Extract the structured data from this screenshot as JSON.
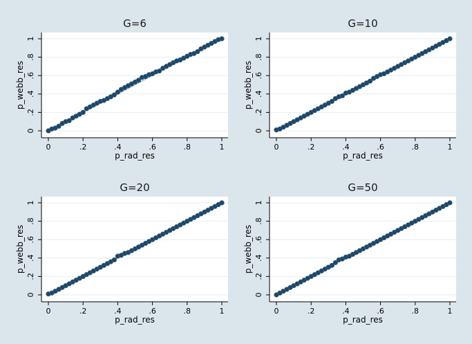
{
  "figure": {
    "background": "#dbe6ec",
    "plot_background": "#ffffff",
    "grid_color": "#e6eef3",
    "marker_color": "#1a476f",
    "marker_edge": "#3a5a6a",
    "fit_line_color": "#7a9aaa"
  },
  "chart_data": [
    {
      "type": "scatter",
      "title": "G=6",
      "xlabel": "p_rad_res",
      "ylabel": "p_webb_res",
      "xlim": [
        0,
        1
      ],
      "ylim": [
        0,
        1
      ],
      "xticks": [
        0,
        0.2,
        0.4,
        0.6,
        0.8,
        1
      ],
      "xtick_labels": [
        "0",
        ".2",
        ".4",
        ".6",
        ".8",
        "1"
      ],
      "yticks": [
        0,
        0.2,
        0.4,
        0.6,
        0.8,
        1
      ],
      "ytick_labels": [
        "0",
        ".2",
        ".4",
        ".6",
        ".8",
        "1"
      ],
      "grid": true,
      "fit_line": true,
      "points": [
        [
          0.0,
          0.0
        ],
        [
          0.02,
          0.02
        ],
        [
          0.04,
          0.03
        ],
        [
          0.06,
          0.05
        ],
        [
          0.08,
          0.08
        ],
        [
          0.1,
          0.1
        ],
        [
          0.12,
          0.11
        ],
        [
          0.14,
          0.14
        ],
        [
          0.16,
          0.16
        ],
        [
          0.18,
          0.18
        ],
        [
          0.2,
          0.2
        ],
        [
          0.22,
          0.24
        ],
        [
          0.24,
          0.26
        ],
        [
          0.26,
          0.28
        ],
        [
          0.28,
          0.3
        ],
        [
          0.3,
          0.32
        ],
        [
          0.32,
          0.33
        ],
        [
          0.34,
          0.35
        ],
        [
          0.36,
          0.37
        ],
        [
          0.38,
          0.39
        ],
        [
          0.4,
          0.42
        ],
        [
          0.42,
          0.45
        ],
        [
          0.44,
          0.47
        ],
        [
          0.46,
          0.49
        ],
        [
          0.48,
          0.51
        ],
        [
          0.5,
          0.53
        ],
        [
          0.52,
          0.55
        ],
        [
          0.54,
          0.58
        ],
        [
          0.56,
          0.59
        ],
        [
          0.58,
          0.61
        ],
        [
          0.6,
          0.62
        ],
        [
          0.62,
          0.64
        ],
        [
          0.64,
          0.65
        ],
        [
          0.66,
          0.68
        ],
        [
          0.68,
          0.7
        ],
        [
          0.7,
          0.72
        ],
        [
          0.72,
          0.74
        ],
        [
          0.74,
          0.76
        ],
        [
          0.76,
          0.77
        ],
        [
          0.78,
          0.79
        ],
        [
          0.8,
          0.81
        ],
        [
          0.82,
          0.83
        ],
        [
          0.84,
          0.84
        ],
        [
          0.86,
          0.86
        ],
        [
          0.88,
          0.89
        ],
        [
          0.9,
          0.91
        ],
        [
          0.92,
          0.93
        ],
        [
          0.94,
          0.95
        ],
        [
          0.96,
          0.97
        ],
        [
          0.98,
          0.99
        ],
        [
          1.0,
          1.0
        ]
      ]
    },
    {
      "type": "scatter",
      "title": "G=10",
      "xlabel": "p_rad_res",
      "ylabel": "p_webb_res",
      "xlim": [
        0,
        1
      ],
      "ylim": [
        0,
        1
      ],
      "xticks": [
        0,
        0.2,
        0.4,
        0.6,
        0.8,
        1
      ],
      "xtick_labels": [
        "0",
        ".2",
        ".4",
        ".6",
        ".8",
        "1"
      ],
      "yticks": [
        0,
        0.2,
        0.4,
        0.6,
        0.8,
        1
      ],
      "ytick_labels": [
        "0",
        ".2",
        ".4",
        ".6",
        ".8",
        "1"
      ],
      "grid": true,
      "fit_line": true,
      "points": [
        [
          0.0,
          0.01
        ],
        [
          0.02,
          0.02
        ],
        [
          0.04,
          0.04
        ],
        [
          0.06,
          0.06
        ],
        [
          0.08,
          0.08
        ],
        [
          0.1,
          0.1
        ],
        [
          0.12,
          0.12
        ],
        [
          0.14,
          0.14
        ],
        [
          0.16,
          0.16
        ],
        [
          0.18,
          0.18
        ],
        [
          0.2,
          0.2
        ],
        [
          0.22,
          0.22
        ],
        [
          0.24,
          0.24
        ],
        [
          0.26,
          0.26
        ],
        [
          0.28,
          0.28
        ],
        [
          0.3,
          0.3
        ],
        [
          0.32,
          0.32
        ],
        [
          0.34,
          0.35
        ],
        [
          0.36,
          0.37
        ],
        [
          0.38,
          0.38
        ],
        [
          0.4,
          0.41
        ],
        [
          0.42,
          0.42
        ],
        [
          0.44,
          0.44
        ],
        [
          0.46,
          0.46
        ],
        [
          0.48,
          0.48
        ],
        [
          0.5,
          0.5
        ],
        [
          0.52,
          0.52
        ],
        [
          0.54,
          0.54
        ],
        [
          0.56,
          0.57
        ],
        [
          0.58,
          0.59
        ],
        [
          0.6,
          0.61
        ],
        [
          0.62,
          0.62
        ],
        [
          0.64,
          0.64
        ],
        [
          0.66,
          0.66
        ],
        [
          0.68,
          0.68
        ],
        [
          0.7,
          0.7
        ],
        [
          0.72,
          0.72
        ],
        [
          0.74,
          0.74
        ],
        [
          0.76,
          0.76
        ],
        [
          0.78,
          0.78
        ],
        [
          0.8,
          0.8
        ],
        [
          0.82,
          0.82
        ],
        [
          0.84,
          0.84
        ],
        [
          0.86,
          0.86
        ],
        [
          0.88,
          0.88
        ],
        [
          0.9,
          0.9
        ],
        [
          0.92,
          0.92
        ],
        [
          0.94,
          0.94
        ],
        [
          0.96,
          0.96
        ],
        [
          0.98,
          0.98
        ],
        [
          1.0,
          1.0
        ]
      ]
    },
    {
      "type": "scatter",
      "title": "G=20",
      "xlabel": "p_rad_res",
      "ylabel": "p_webb_res",
      "xlim": [
        0,
        1
      ],
      "ylim": [
        0,
        1
      ],
      "xticks": [
        0,
        0.2,
        0.4,
        0.6,
        0.8,
        1
      ],
      "xtick_labels": [
        "0",
        ".2",
        ".4",
        ".6",
        ".8",
        "1"
      ],
      "yticks": [
        0,
        0.2,
        0.4,
        0.6,
        0.8,
        1
      ],
      "ytick_labels": [
        "0",
        ".2",
        ".4",
        ".6",
        ".8",
        "1"
      ],
      "grid": true,
      "fit_line": true,
      "points": [
        [
          0.0,
          0.01
        ],
        [
          0.02,
          0.02
        ],
        [
          0.04,
          0.04
        ],
        [
          0.06,
          0.06
        ],
        [
          0.08,
          0.08
        ],
        [
          0.1,
          0.1
        ],
        [
          0.12,
          0.12
        ],
        [
          0.14,
          0.14
        ],
        [
          0.16,
          0.16
        ],
        [
          0.18,
          0.18
        ],
        [
          0.2,
          0.2
        ],
        [
          0.22,
          0.22
        ],
        [
          0.24,
          0.24
        ],
        [
          0.26,
          0.26
        ],
        [
          0.28,
          0.28
        ],
        [
          0.3,
          0.3
        ],
        [
          0.32,
          0.32
        ],
        [
          0.34,
          0.34
        ],
        [
          0.36,
          0.36
        ],
        [
          0.38,
          0.38
        ],
        [
          0.4,
          0.42
        ],
        [
          0.42,
          0.43
        ],
        [
          0.44,
          0.45
        ],
        [
          0.46,
          0.46
        ],
        [
          0.48,
          0.48
        ],
        [
          0.5,
          0.5
        ],
        [
          0.52,
          0.52
        ],
        [
          0.54,
          0.54
        ],
        [
          0.56,
          0.56
        ],
        [
          0.58,
          0.58
        ],
        [
          0.6,
          0.6
        ],
        [
          0.62,
          0.62
        ],
        [
          0.64,
          0.64
        ],
        [
          0.66,
          0.66
        ],
        [
          0.68,
          0.68
        ],
        [
          0.7,
          0.7
        ],
        [
          0.72,
          0.72
        ],
        [
          0.74,
          0.74
        ],
        [
          0.76,
          0.76
        ],
        [
          0.78,
          0.78
        ],
        [
          0.8,
          0.8
        ],
        [
          0.82,
          0.82
        ],
        [
          0.84,
          0.84
        ],
        [
          0.86,
          0.86
        ],
        [
          0.88,
          0.88
        ],
        [
          0.9,
          0.9
        ],
        [
          0.92,
          0.92
        ],
        [
          0.94,
          0.94
        ],
        [
          0.96,
          0.96
        ],
        [
          0.98,
          0.98
        ],
        [
          1.0,
          1.0
        ]
      ]
    },
    {
      "type": "scatter",
      "title": "G=50",
      "xlabel": "p_rad_res",
      "ylabel": "p_webb_res",
      "xlim": [
        0,
        1
      ],
      "ylim": [
        0,
        1
      ],
      "xticks": [
        0,
        0.2,
        0.4,
        0.6,
        0.8,
        1
      ],
      "xtick_labels": [
        "0",
        ".2",
        ".4",
        ".6",
        ".8",
        "1"
      ],
      "yticks": [
        0,
        0.2,
        0.4,
        0.6,
        0.8,
        1
      ],
      "ytick_labels": [
        "0",
        ".2",
        ".4",
        ".6",
        ".8",
        "1"
      ],
      "grid": true,
      "fit_line": true,
      "points": [
        [
          0.0,
          0.0
        ],
        [
          0.02,
          0.02
        ],
        [
          0.04,
          0.04
        ],
        [
          0.06,
          0.06
        ],
        [
          0.08,
          0.08
        ],
        [
          0.1,
          0.1
        ],
        [
          0.12,
          0.12
        ],
        [
          0.14,
          0.14
        ],
        [
          0.16,
          0.16
        ],
        [
          0.18,
          0.18
        ],
        [
          0.2,
          0.2
        ],
        [
          0.22,
          0.22
        ],
        [
          0.24,
          0.24
        ],
        [
          0.26,
          0.26
        ],
        [
          0.28,
          0.28
        ],
        [
          0.3,
          0.3
        ],
        [
          0.32,
          0.32
        ],
        [
          0.34,
          0.35
        ],
        [
          0.36,
          0.38
        ],
        [
          0.38,
          0.39
        ],
        [
          0.4,
          0.41
        ],
        [
          0.42,
          0.42
        ],
        [
          0.44,
          0.44
        ],
        [
          0.46,
          0.46
        ],
        [
          0.48,
          0.48
        ],
        [
          0.5,
          0.5
        ],
        [
          0.52,
          0.52
        ],
        [
          0.54,
          0.54
        ],
        [
          0.56,
          0.56
        ],
        [
          0.58,
          0.58
        ],
        [
          0.6,
          0.6
        ],
        [
          0.62,
          0.62
        ],
        [
          0.64,
          0.64
        ],
        [
          0.66,
          0.66
        ],
        [
          0.68,
          0.68
        ],
        [
          0.7,
          0.7
        ],
        [
          0.72,
          0.72
        ],
        [
          0.74,
          0.74
        ],
        [
          0.76,
          0.76
        ],
        [
          0.78,
          0.78
        ],
        [
          0.8,
          0.8
        ],
        [
          0.82,
          0.82
        ],
        [
          0.84,
          0.84
        ],
        [
          0.86,
          0.86
        ],
        [
          0.88,
          0.88
        ],
        [
          0.9,
          0.9
        ],
        [
          0.92,
          0.92
        ],
        [
          0.94,
          0.94
        ],
        [
          0.96,
          0.96
        ],
        [
          0.98,
          0.98
        ],
        [
          1.0,
          1.0
        ]
      ]
    }
  ]
}
